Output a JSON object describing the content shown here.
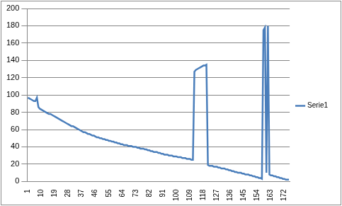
{
  "chart_data": {
    "type": "line",
    "categories": [
      "1",
      null,
      null,
      null,
      null,
      null,
      null,
      null,
      null,
      "10",
      null,
      null,
      null,
      null,
      null,
      null,
      null,
      null,
      "19",
      null,
      null,
      null,
      null,
      null,
      null,
      null,
      null,
      "28",
      null,
      null,
      null,
      null,
      null,
      null,
      null,
      null,
      "37",
      null,
      null,
      null,
      null,
      null,
      null,
      null,
      null,
      "46",
      null,
      null,
      null,
      null,
      null,
      null,
      null,
      null,
      "55",
      null,
      null,
      null,
      null,
      null,
      null,
      null,
      null,
      "64",
      null,
      null,
      null,
      null,
      null,
      null,
      null,
      null,
      "73",
      null,
      null,
      null,
      null,
      null,
      null,
      null,
      null,
      "82",
      null,
      null,
      null,
      null,
      null,
      null,
      null,
      null,
      "91",
      null,
      null,
      null,
      null,
      null,
      null,
      null,
      null,
      "100",
      null,
      null,
      null,
      null,
      null,
      null,
      null,
      null,
      "109",
      null,
      null,
      null,
      null,
      null,
      null,
      null,
      null,
      "118",
      null,
      null,
      null,
      null,
      null,
      null,
      null,
      null,
      "127",
      null,
      null,
      null,
      null,
      null,
      null,
      null,
      null,
      "136",
      null,
      null,
      null,
      null,
      null,
      null,
      null,
      null,
      "145",
      null,
      null,
      null,
      null,
      null,
      null,
      null,
      null,
      "154",
      null,
      null,
      null,
      null,
      null,
      null,
      null,
      null,
      "163",
      null,
      null,
      null,
      null,
      null,
      null,
      null,
      null,
      "172",
      null,
      null,
      null
    ],
    "series": [
      {
        "name": "Serie1",
        "color": "#4a7ebb",
        "marker": "none",
        "line_style": "solid",
        "values": [
          97,
          96,
          95,
          94,
          93,
          93,
          97,
          86,
          84,
          83,
          82,
          81,
          80,
          79,
          78,
          78,
          77,
          76,
          75,
          74,
          73,
          72,
          71,
          70,
          69,
          68,
          67,
          66,
          65,
          64,
          64,
          63,
          62,
          61,
          60,
          59,
          58,
          57,
          57,
          56,
          55,
          55,
          54,
          53,
          53,
          52,
          51,
          51,
          50,
          50,
          49,
          49,
          48,
          48,
          47,
          47,
          46,
          46,
          45,
          45,
          44,
          44,
          43,
          43,
          42,
          42,
          42,
          41,
          41,
          41,
          40,
          40,
          40,
          39,
          39,
          38,
          38,
          38,
          37,
          37,
          36,
          36,
          35,
          35,
          34,
          34,
          34,
          33,
          33,
          32,
          32,
          31,
          31,
          31,
          30,
          30,
          30,
          29,
          29,
          29,
          28,
          28,
          28,
          27,
          27,
          27,
          26,
          26,
          26,
          25,
          25,
          127,
          129,
          130,
          131,
          132,
          133,
          134,
          134,
          135,
          19,
          18,
          18,
          18,
          17,
          17,
          17,
          16,
          16,
          15,
          15,
          15,
          14,
          14,
          13,
          13,
          12,
          12,
          11,
          11,
          10,
          10,
          10,
          9,
          9,
          8,
          8,
          8,
          7,
          7,
          6,
          6,
          5,
          5,
          4,
          4,
          3,
          175,
          178,
          10,
          180,
          8,
          7,
          7,
          6,
          6,
          5,
          5,
          4,
          4,
          3,
          3,
          2,
          2,
          2
        ]
      }
    ],
    "ylim": [
      0,
      200
    ],
    "yticks": [
      0,
      20,
      40,
      60,
      80,
      100,
      120,
      140,
      160,
      180,
      200
    ],
    "grid": true,
    "legend": "right"
  }
}
